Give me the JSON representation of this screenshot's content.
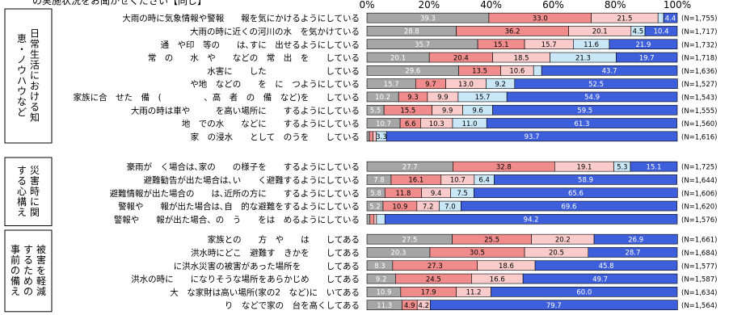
{
  "page_title": "の実施状況をお聞かせください【同じ】",
  "chart_data": {
    "type": "bar",
    "orientation": "horizontal",
    "stacked": true,
    "xlim": [
      0,
      100
    ],
    "xticks": [
      "0%",
      "20%",
      "40%",
      "60%",
      "80%",
      "100%"
    ],
    "grid": false,
    "segment_colors": [
      "#a6a6a6",
      "#f08c8c",
      "#f9cbcb",
      "#c9e7f7",
      "#3e5fdc"
    ],
    "groups": [
      {
        "label": "日常生活における知恵・ノウハウなど",
        "rows": [
          {
            "label": "大雨の時に気象情報や警報　　報を気にかけるようにしている",
            "values": [
              39.3,
              33.0,
              21.5,
              1.8,
              4.4
            ],
            "n": "(N=1,755)"
          },
          {
            "label": "大雨の時に近くの河川の水　を気かけている",
            "values": [
              28.8,
              36.2,
              20.1,
              4.5,
              10.4
            ],
            "n": "(N=1,717)"
          },
          {
            "label": "通　や印　等の　　は､すに　出せるようにしている",
            "values": [
              35.7,
              15.1,
              15.7,
              11.6,
              21.9
            ],
            "n": "(N=1,732)"
          },
          {
            "label": "常　の　　水　や　　などの　常　出　を　　している",
            "values": [
              20.1,
              20.4,
              18.5,
              21.3,
              19.7
            ],
            "n": "(N=1,718)"
          },
          {
            "label": "水害に　　した　　　　　　　している",
            "values": [
              29.6,
              13.5,
              10.6,
              2.6,
              43.7
            ],
            "n": "(N=1,636)"
          },
          {
            "label": "や地　などの　　を　に　つようにしている",
            "values": [
              15.7,
              9.7,
              13.0,
              9.2,
              52.5
            ],
            "n": "(N=1,527)"
          },
          {
            "label": "家族に合　せた　備　(　　　　　、高　者　の　備　など)を　　している",
            "values": [
              10.2,
              9.3,
              9.9,
              15.7,
              54.9
            ],
            "n": "(N=1,543)"
          },
          {
            "label": "大雨の時は車や　　　を高い場所に　　するようにしている",
            "values": [
              5.5,
              15.5,
              9.9,
              9.6,
              59.5
            ],
            "n": "(N=1,555)"
          },
          {
            "label": "地　での水　　などに　　するようにしている",
            "values": [
              10.7,
              6.6,
              10.3,
              11.0,
              61.3
            ],
            "n": "(N=1,560)"
          },
          {
            "label": "家　の浸水　　として　のうを　　している",
            "values": [
              0.8,
              1.2,
              1.0,
              3.3,
              93.7
            ],
            "n": "(N=1,616)"
          }
        ]
      },
      {
        "label": "災害時に関する心構え",
        "rows": [
          {
            "label": "豪雨が　く場合は､家の　　の様子を　　するようにしている",
            "values": [
              27.7,
              32.8,
              19.1,
              5.3,
              15.1
            ],
            "n": "(N=1,725)"
          },
          {
            "label": "避難勧告が出た場合は､い　　く避難するようにしている",
            "values": [
              7.8,
              16.1,
              10.7,
              6.4,
              58.9
            ],
            "n": "(N=1,644)"
          },
          {
            "label": "避難情報が出た場合の　　は､近所の方に　　するようにしている",
            "values": [
              5.8,
              11.8,
              9.4,
              7.5,
              65.6
            ],
            "n": "(N=1,606)"
          },
          {
            "label": "警報や　　報が出た場合は､自　的な避難をするようにしている",
            "values": [
              5.2,
              10.9,
              7.2,
              7.0,
              69.6
            ],
            "n": "(N=1,620)"
          },
          {
            "label": "警報や　　報が出た場合、の　う　　をは　めるようにしている",
            "values": [
              1.0,
              1.3,
              0.8,
              2.7,
              94.2
            ],
            "n": "(N=1,576)"
          }
        ]
      },
      {
        "label": "被害を軽減するための事前の備え",
        "rows": [
          {
            "label": "家族との　　方　や　　は　　してある",
            "values": [
              27.5,
              25.5,
              20.2,
              0.0,
              26.9
            ],
            "n": "(N=1,661)"
          },
          {
            "label": "洪水時にどこ　避難す　きかを　　してある",
            "values": [
              20.3,
              30.5,
              20.5,
              0.0,
              28.7
            ],
            "n": "(N=1,684)"
          },
          {
            "label": "に洪水災害の被害があった場所を　　　してある",
            "values": [
              8.3,
              27.3,
              18.6,
              0.0,
              45.8
            ],
            "n": "(N=1,577)"
          },
          {
            "label": "洪水の時に　　になりそうな場所をあらかじめ　　してある",
            "values": [
              9.2,
              24.5,
              16.6,
              0.0,
              49.7
            ],
            "n": "(N=1,587)"
          },
          {
            "label": "大　な家財は高い場所(家の2　など)に　いてある",
            "values": [
              10.9,
              17.9,
              11.2,
              0.0,
              60.0
            ],
            "n": "(N=1,634)"
          },
          {
            "label": "り　などで家の　台を高くしてある",
            "values": [
              11.3,
              4.9,
              4.2,
              0.0,
              79.7
            ],
            "n": "(N=1,564)"
          }
        ]
      }
    ]
  }
}
